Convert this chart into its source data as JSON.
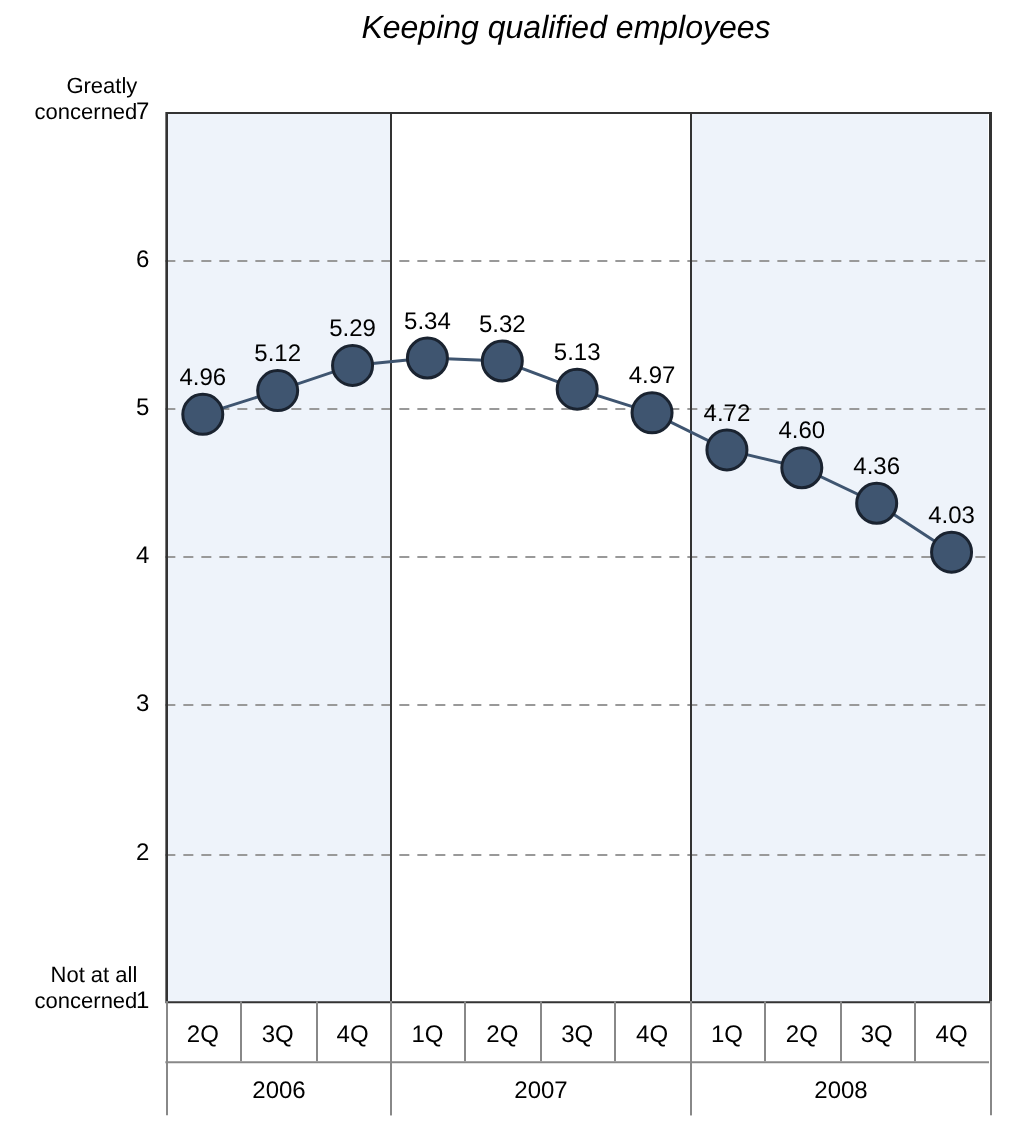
{
  "chart_data": {
    "type": "line",
    "title": "Keeping qualified employees",
    "categories": [
      "2Q",
      "3Q",
      "4Q",
      "1Q",
      "2Q",
      "3Q",
      "4Q",
      "1Q",
      "2Q",
      "3Q",
      "4Q"
    ],
    "series": [
      {
        "color": "#3f5570",
        "values": [
          4.96,
          5.12,
          5.29,
          5.34,
          5.32,
          5.13,
          4.97,
          4.72,
          4.6,
          4.36,
          4.03
        ],
        "value_labels": [
          "4.96",
          "5.12",
          "5.29",
          "5.34",
          "5.32",
          "5.13",
          "4.97",
          "4.72",
          "4.60",
          "4.36",
          "4.03"
        ]
      }
    ],
    "ylim": [
      1,
      7
    ],
    "yticks": [
      1,
      2,
      3,
      4,
      5,
      6,
      7
    ],
    "grid": "y",
    "marker": "circle",
    "legend": false,
    "annotations": [
      "Greatly concerned",
      "Not at all concerned",
      "2006",
      "2007",
      "2008"
    ]
  }
}
